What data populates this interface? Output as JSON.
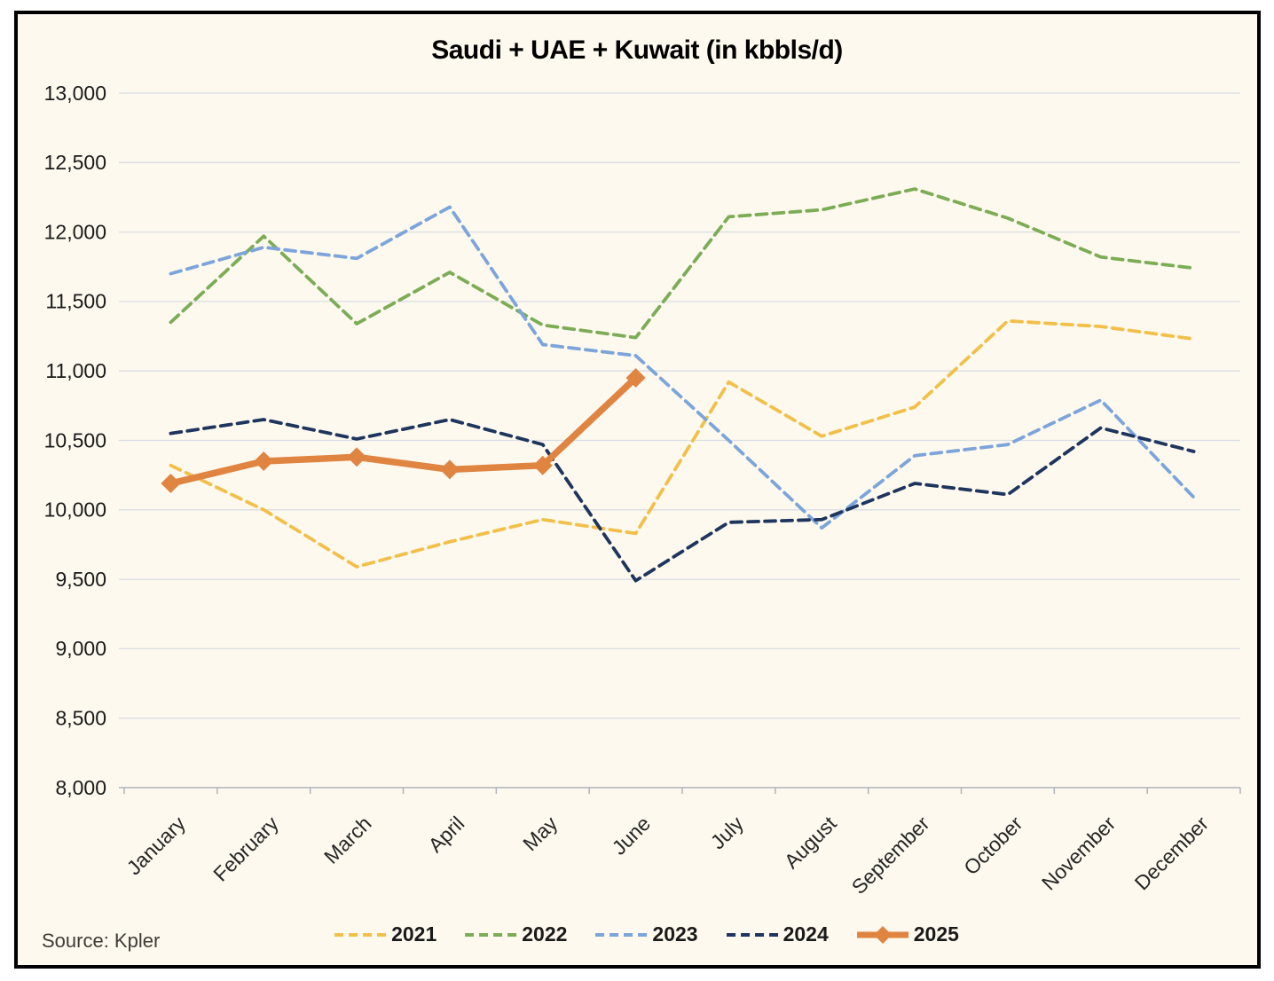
{
  "window": {
    "outer_background": "#FFFFFF",
    "frame_border_color": "#000000",
    "chart_background": "#FDF9EE",
    "gridline_color": "#D9DDE3",
    "axis_color": "#AEB3BB",
    "label_color": "#262626"
  },
  "source": "Source: Kpler",
  "chart_data": {
    "type": "line",
    "title": "Saudi + UAE + Kuwait (in kbbls/d)",
    "categories": [
      "January",
      "February",
      "March",
      "April",
      "May",
      "June",
      "July",
      "August",
      "September",
      "October",
      "November",
      "December"
    ],
    "series": [
      {
        "name": "2021",
        "color": "#F2C04A",
        "style": "dashed",
        "values": [
          10320,
          10000,
          9590,
          9770,
          9930,
          9830,
          10920,
          10530,
          10740,
          11360,
          11320,
          11230
        ]
      },
      {
        "name": "2022",
        "color": "#7CAD56",
        "style": "dashed",
        "values": [
          11350,
          11970,
          11340,
          11710,
          11330,
          11240,
          12110,
          12160,
          12310,
          12100,
          11820,
          11740
        ]
      },
      {
        "name": "2023",
        "color": "#7CA5DB",
        "style": "dashed",
        "values": [
          11700,
          11890,
          11810,
          12180,
          11190,
          11110,
          10500,
          9870,
          10390,
          10470,
          10790,
          10090
        ]
      },
      {
        "name": "2024",
        "color": "#1E355F",
        "style": "dashed",
        "values": [
          10550,
          10650,
          10510,
          10650,
          10470,
          9490,
          9910,
          9930,
          10190,
          10110,
          10590,
          10420
        ]
      },
      {
        "name": "2025",
        "color": "#E08442",
        "style": "solid-diamond",
        "values": [
          10190,
          10350,
          10380,
          10290,
          10320,
          10950
        ]
      }
    ],
    "ylim": [
      8000,
      13000
    ],
    "ytick_step": 500,
    "ytick_labels": [
      "8,000",
      "8,500",
      "9,000",
      "9,500",
      "10,000",
      "10,500",
      "11,000",
      "11,500",
      "12,000",
      "12,500",
      "13,000"
    ],
    "grid": true,
    "legend_position": "bottom"
  }
}
